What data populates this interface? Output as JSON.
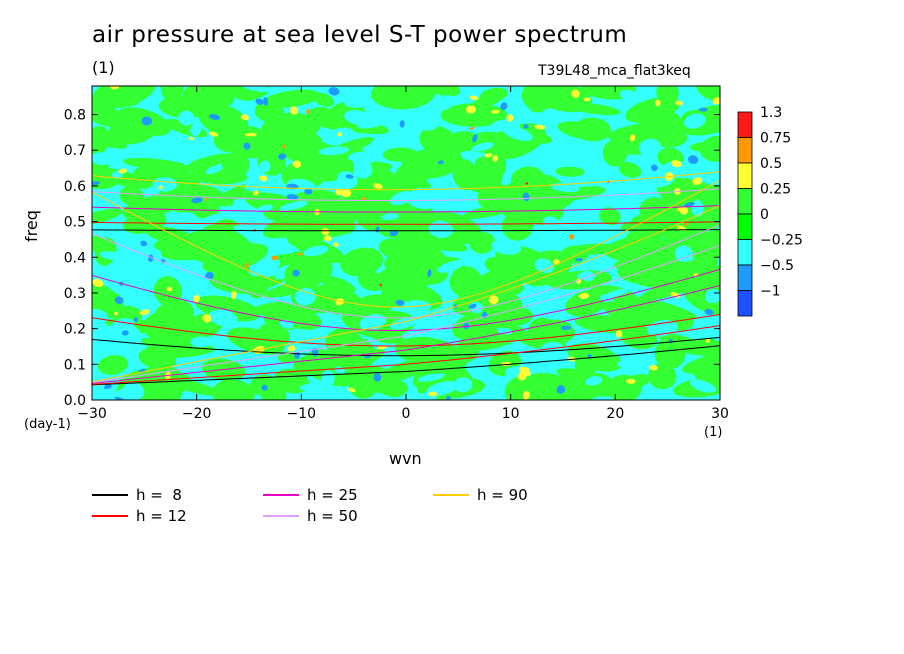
{
  "header": {
    "title": "air pressure at sea level S-T power spectrum",
    "subtitle": "(1)",
    "run_name": "T39L48_mca_flat3keq"
  },
  "chart_data": {
    "type": "heatmap",
    "title": "air pressure at sea level S-T power spectrum",
    "xlabel": "wvn",
    "ylabel": "freq",
    "x_unit": "(1)",
    "y_unit": "(day-1)",
    "xlim": [
      -30,
      30
    ],
    "ylim": [
      0,
      0.88
    ],
    "xticks": [
      -30,
      -20,
      -10,
      0,
      10,
      20,
      30
    ],
    "yticks": [
      0.0,
      0.1,
      0.2,
      0.3,
      0.4,
      0.5,
      0.6,
      0.7,
      0.8
    ],
    "colorbar": {
      "levels": [
        "1.3",
        "0.75",
        "0.5",
        "0.25",
        "0",
        "−0.25",
        "−0.5",
        "−1"
      ],
      "colors": [
        "#ff1a1a",
        "#ff9900",
        "#ffff33",
        "#33ff33",
        "#00ff00",
        "#33ffff",
        "#1e9bff",
        "#1e50ff"
      ]
    },
    "field_colors": {
      "cyan": "#33ffff",
      "green": "#33ff33",
      "yellow": "#ffff33",
      "blue": "#1e9bff",
      "orange": "#ff9900",
      "red": "#ff1a1a"
    },
    "series": [
      {
        "name": "h =  8",
        "color": "#000000"
      },
      {
        "name": "h = 12",
        "color": "#ff0000"
      },
      {
        "name": "h = 25",
        "color": "#e800c8"
      },
      {
        "name": "h = 50",
        "color": "#e0a0ff"
      },
      {
        "name": "h = 90",
        "color": "#ffcc00"
      }
    ]
  }
}
